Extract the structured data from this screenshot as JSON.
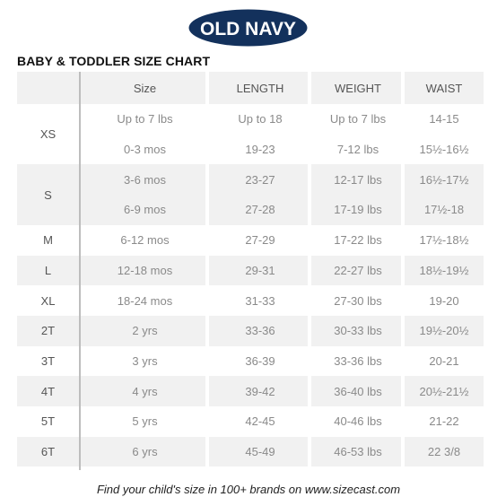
{
  "brand": {
    "logo_text": "OLD NAVY",
    "logo_color": "#13315c"
  },
  "title": "BABY & TODDLER SIZE CHART",
  "table": {
    "headers": [
      "",
      "Size",
      "LENGTH",
      "WEIGHT",
      "WAIST"
    ],
    "rows": [
      {
        "size": "XS",
        "sub": [
          [
            "Up to 7 lbs",
            "Up to 18",
            "Up to 7 lbs",
            "14-15"
          ],
          [
            "0-3 mos",
            "19-23",
            "7-12 lbs",
            "15½-16½"
          ]
        ]
      },
      {
        "size": "S",
        "sub": [
          [
            "3-6 mos",
            "23-27",
            "12-17 lbs",
            "16½-17½"
          ],
          [
            "6-9 mos",
            "27-28",
            "17-19 lbs",
            "17½-18"
          ]
        ]
      },
      {
        "size": "M",
        "sub": [
          [
            "6-12 mos",
            "27-29",
            "17-22 lbs",
            "17½-18½"
          ]
        ]
      },
      {
        "size": "L",
        "sub": [
          [
            "12-18 mos",
            "29-31",
            "22-27 lbs",
            "18½-19½"
          ]
        ]
      },
      {
        "size": "XL",
        "sub": [
          [
            "18-24 mos",
            "31-33",
            "27-30 lbs",
            "19-20"
          ]
        ]
      },
      {
        "size": "2T",
        "sub": [
          [
            "2 yrs",
            "33-36",
            "30-33 lbs",
            "19½-20½"
          ]
        ]
      },
      {
        "size": "3T",
        "sub": [
          [
            "3 yrs",
            "36-39",
            "33-36 lbs",
            "20-21"
          ]
        ]
      },
      {
        "size": "4T",
        "sub": [
          [
            "4 yrs",
            "39-42",
            "36-40 lbs",
            "20½-21½"
          ]
        ]
      },
      {
        "size": "5T",
        "sub": [
          [
            "5 yrs",
            "42-45",
            "40-46 lbs",
            "21-22"
          ]
        ]
      },
      {
        "size": "6T",
        "sub": [
          [
            "6 yrs",
            "45-49",
            "46-53 lbs",
            "22 3/8"
          ]
        ]
      }
    ]
  },
  "footer": "Find your child's size in 100+ brands on www.sizecast.com"
}
